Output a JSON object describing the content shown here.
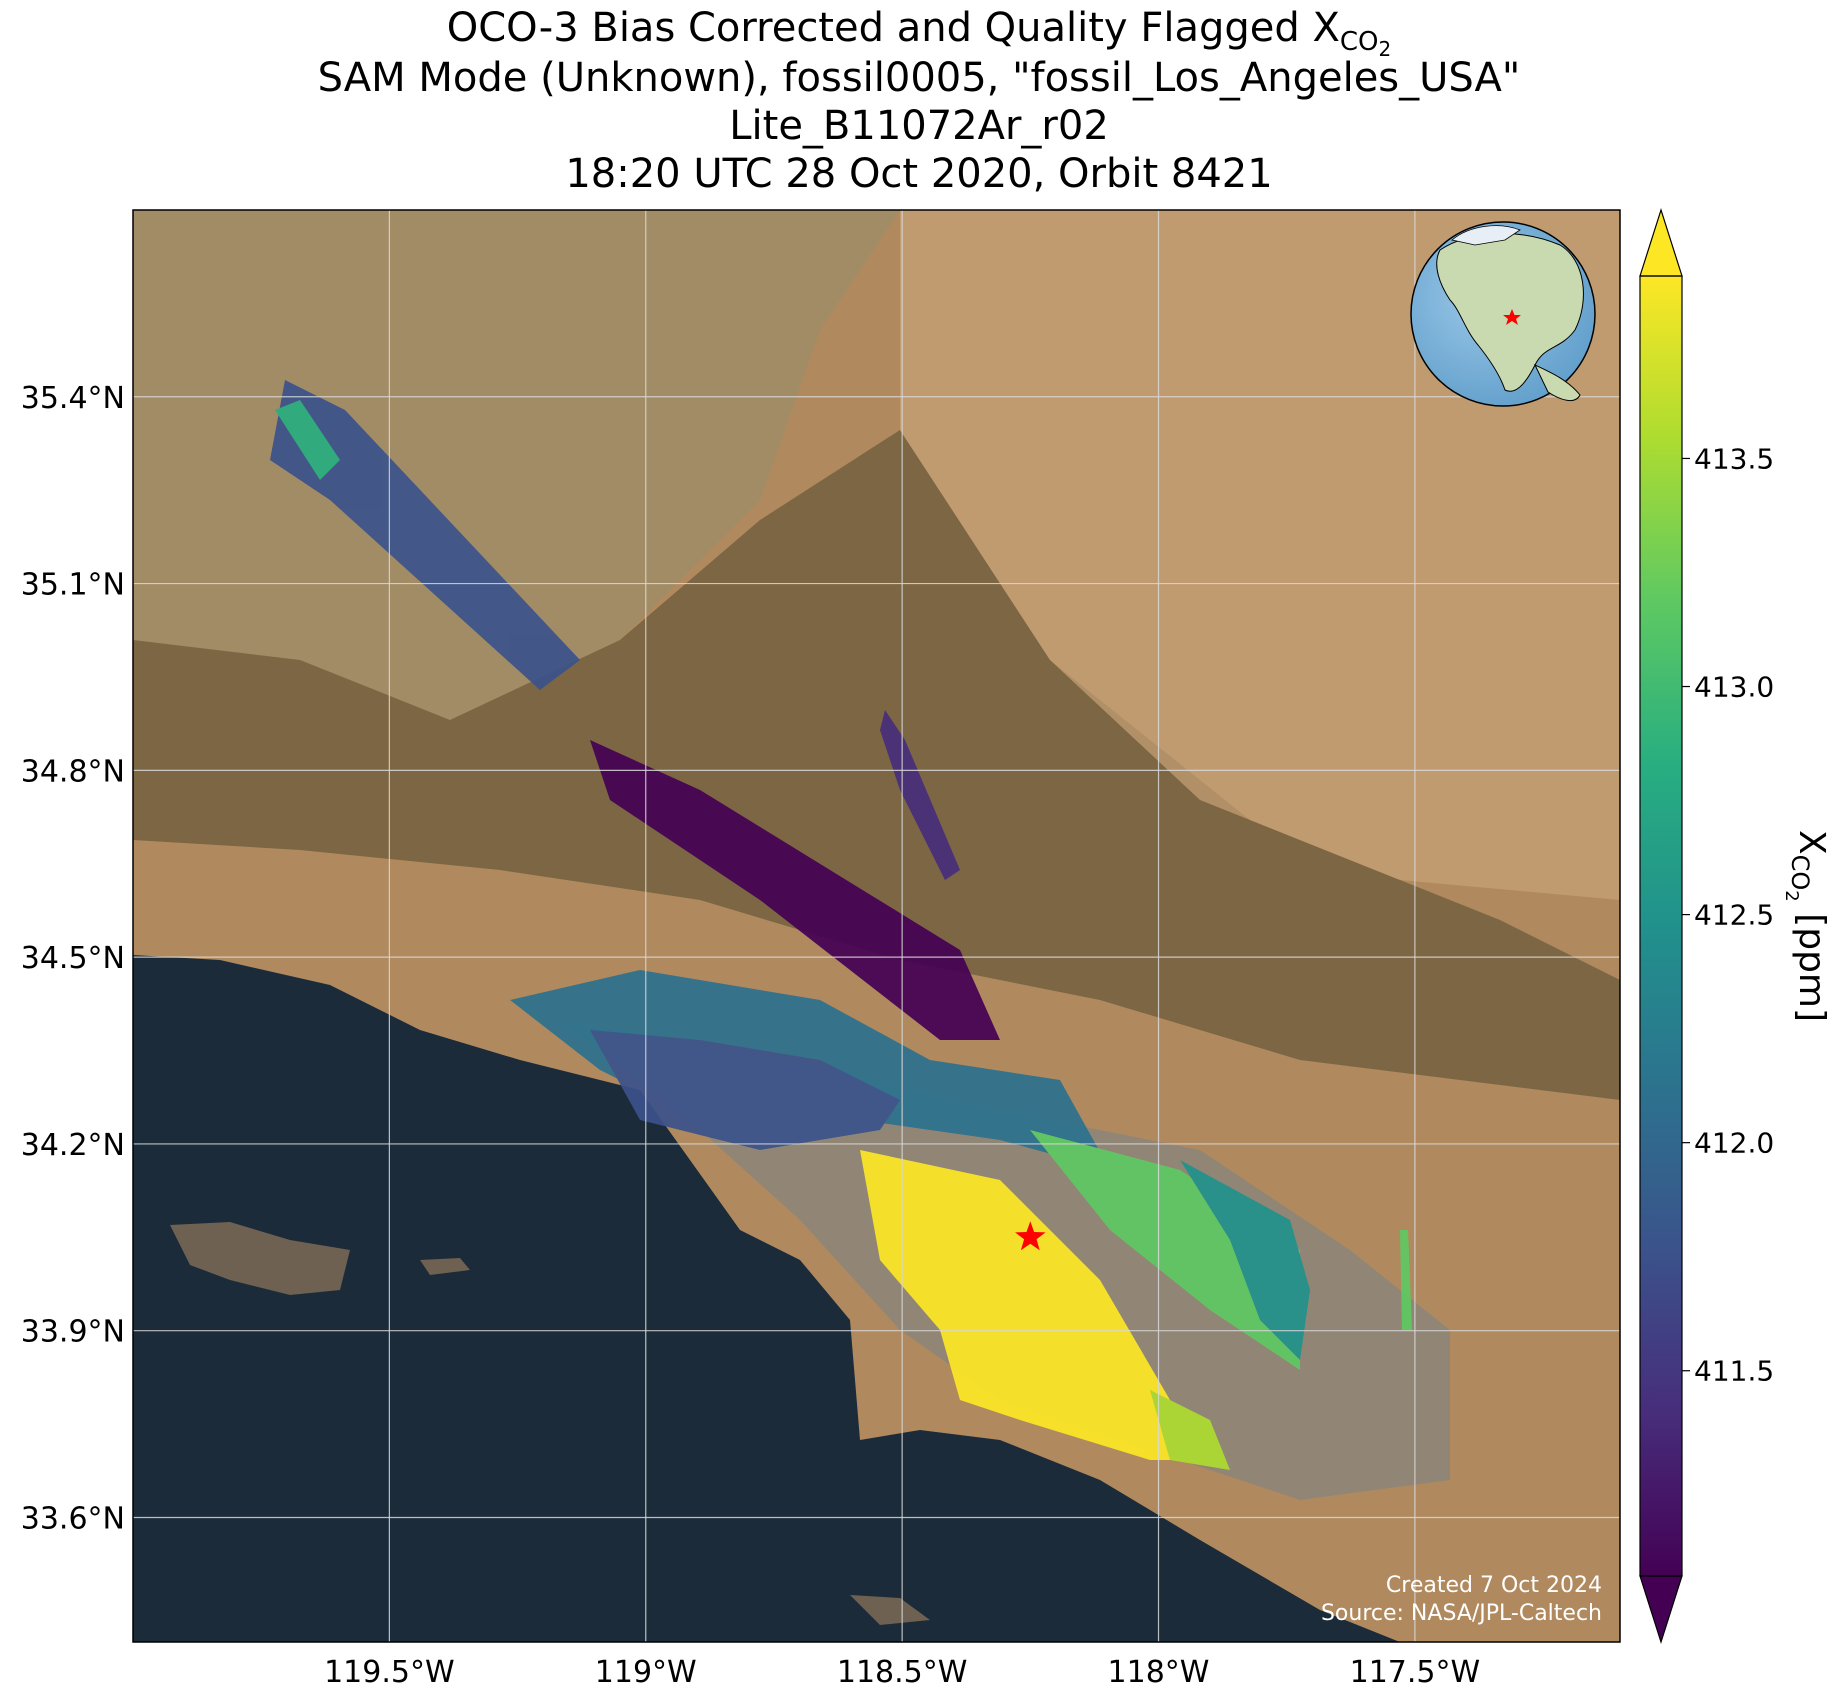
{
  "title": {
    "line1_prefix": "OCO-3 Bias Corrected and Quality Flagged X",
    "line1_sub": "CO",
    "line1_sub2": "2",
    "line2": "SAM Mode (Unknown), fossil0005, \"fossil_Los_Angeles_USA\"",
    "line3": "Lite_B11072Ar_r02",
    "line4": "18:20 UTC 28 Oct 2020, Orbit 8421"
  },
  "map": {
    "lon_range": [
      -120.0,
      -117.1
    ],
    "lat_range": [
      33.4,
      35.7
    ],
    "lon_ticks": [
      {
        "value": -119.5,
        "label": "119.5°W"
      },
      {
        "value": -119.0,
        "label": "119°W"
      },
      {
        "value": -118.5,
        "label": "118.5°W"
      },
      {
        "value": -118.0,
        "label": "118°W"
      },
      {
        "value": -117.5,
        "label": "117.5°W"
      }
    ],
    "lat_ticks": [
      {
        "value": 35.4,
        "label": "35.4°N"
      },
      {
        "value": 35.1,
        "label": "35.1°N"
      },
      {
        "value": 34.8,
        "label": "34.8°N"
      },
      {
        "value": 34.5,
        "label": "34.5°N"
      },
      {
        "value": 34.2,
        "label": "34.2°N"
      },
      {
        "value": 33.9,
        "label": "33.9°N"
      },
      {
        "value": 33.6,
        "label": "33.6°N"
      }
    ],
    "grid": true,
    "target_marker": {
      "lon": -118.25,
      "lat": 34.05,
      "color": "#ff0000"
    },
    "credit_line1": "Created 7 Oct 2024",
    "credit_line2": "Source: NASA/JPL-Caltech",
    "inset_globe": "north-america-globe-icon"
  },
  "colorbar": {
    "label_main": "X",
    "label_sub": "CO",
    "label_sub2": "2",
    "label_unit": " [ppm]",
    "range": [
      411.05,
      413.9
    ],
    "colormap": "viridis",
    "extend": "both",
    "ticks": [
      {
        "value": 411.5,
        "label": "411.5"
      },
      {
        "value": 412.0,
        "label": "412.0"
      },
      {
        "value": 412.5,
        "label": "412.5"
      },
      {
        "value": 413.0,
        "label": "413.0"
      },
      {
        "value": 413.5,
        "label": "413.5"
      }
    ]
  },
  "colors": {
    "land": "#b08a5e",
    "ocean": "#1b2b3a",
    "target_star": "#ff0000"
  }
}
